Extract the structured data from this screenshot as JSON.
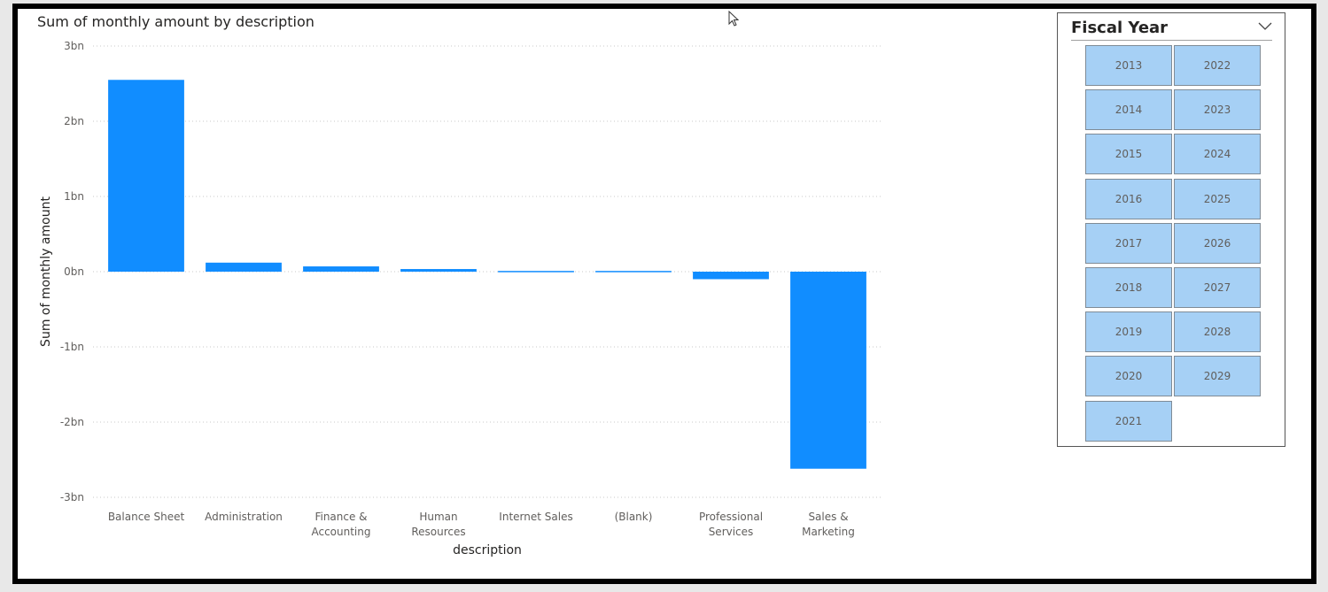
{
  "chart_data": {
    "type": "bar",
    "title": "Sum of monthly amount by description",
    "xlabel": "description",
    "ylabel": "Sum of monthly amount",
    "categories": [
      [
        "Balance Sheet"
      ],
      [
        "Administration"
      ],
      [
        "Finance &",
        "Accounting"
      ],
      [
        "Human",
        "Resources"
      ],
      [
        "Internet Sales"
      ],
      [
        "(Blank)"
      ],
      [
        "Professional",
        "Services"
      ],
      [
        "Sales &",
        "Marketing"
      ]
    ],
    "values": [
      2.55,
      0.12,
      0.07,
      0.035,
      0.01,
      0.01,
      -0.1,
      -2.62
    ],
    "unit": "bn",
    "ylim": [
      -3,
      3
    ],
    "yticks": [
      3,
      2,
      1,
      0,
      -1,
      -2,
      -3
    ],
    "ytick_labels": [
      "3bn",
      "2bn",
      "1bn",
      "0bn",
      "-1bn",
      "-2bn",
      "-3bn"
    ],
    "grid": true,
    "color": "#118dff"
  },
  "slicer": {
    "title": "Fiscal Year",
    "years": [
      "2013",
      "2022",
      "2014",
      "2023",
      "2015",
      "2024",
      "2016",
      "2025",
      "2017",
      "2026",
      "2018",
      "2027",
      "2019",
      "2028",
      "2020",
      "2029",
      "2021"
    ]
  }
}
